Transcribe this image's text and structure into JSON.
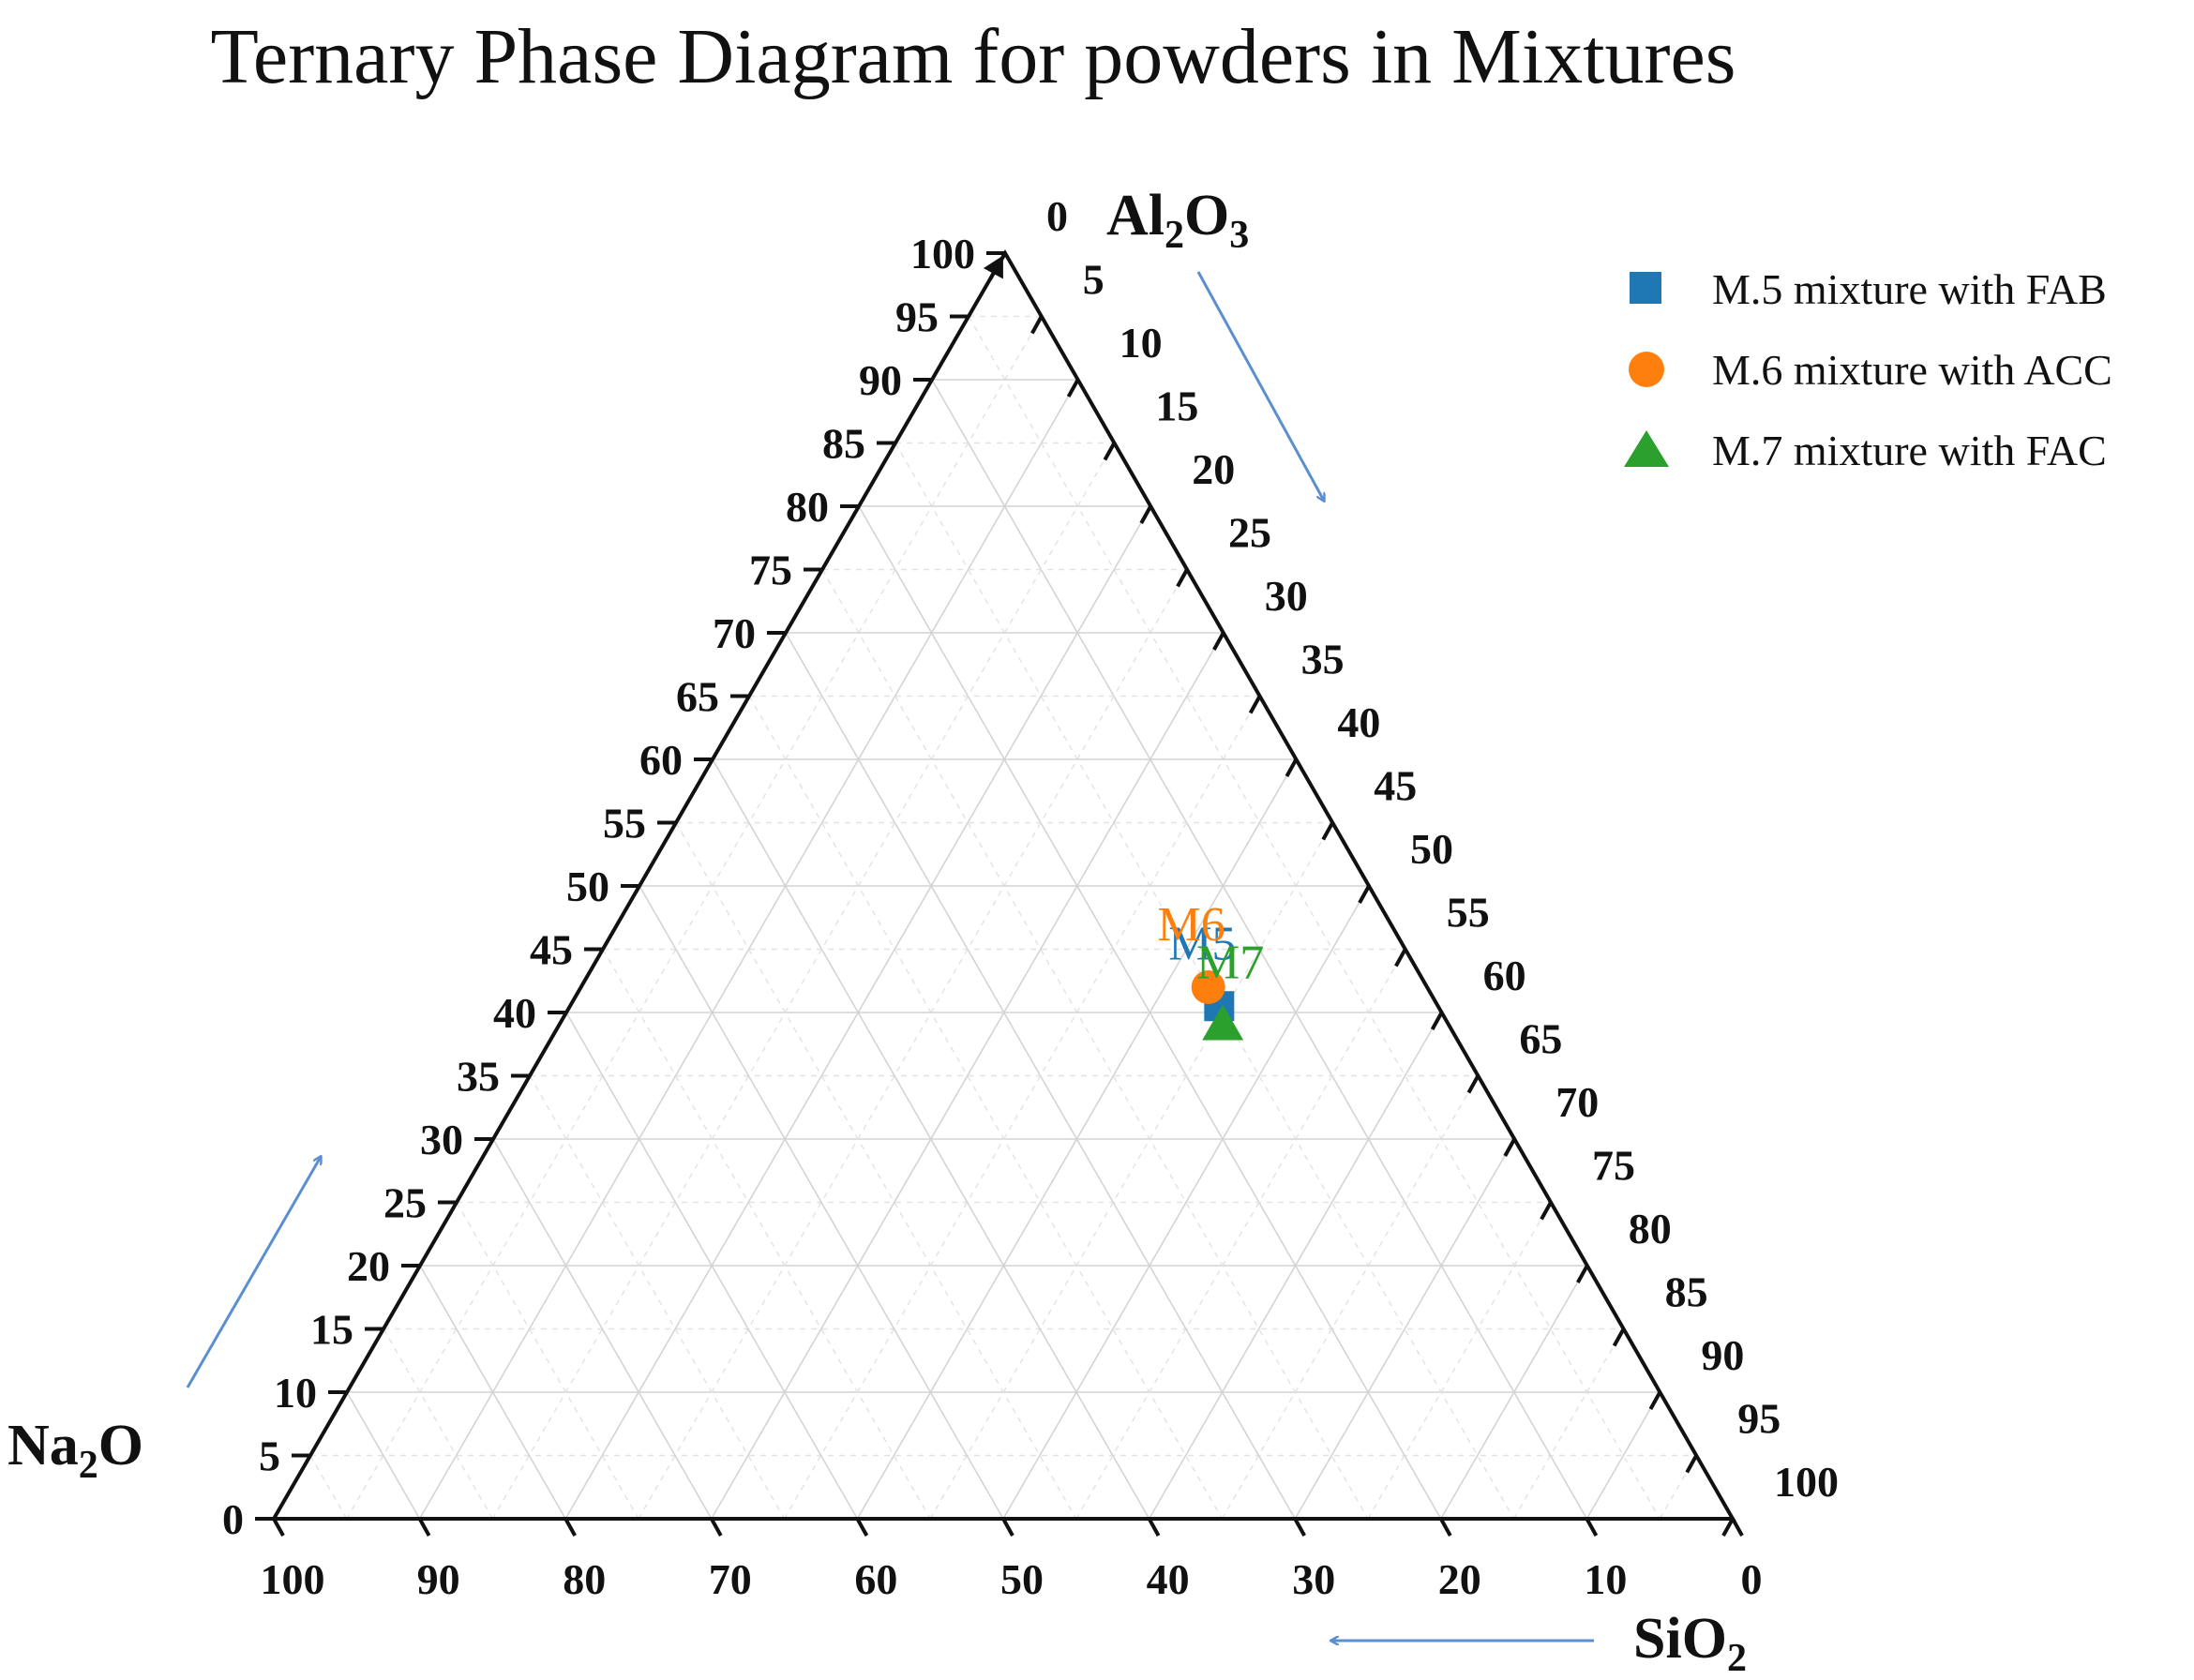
{
  "chart_data": {
    "type": "ternary-scatter",
    "title": "Ternary Phase Diagram for powders in Mixtures",
    "axes": {
      "top": {
        "label_main": "Al",
        "label_sub1": "2",
        "label_main2": "O",
        "label_sub2": "3"
      },
      "left": {
        "label_main": "Na",
        "label_sub1": "2",
        "label_main2": "O",
        "label_sub2": ""
      },
      "right": {
        "label_main": "SiO",
        "label_sub1": "2",
        "label_main2": "",
        "label_sub2": ""
      }
    },
    "ticks_left": [
      "0",
      "5",
      "10",
      "15",
      "20",
      "25",
      "30",
      "35",
      "40",
      "45",
      "50",
      "55",
      "60",
      "65",
      "70",
      "75",
      "80",
      "85",
      "90",
      "95",
      "100"
    ],
    "ticks_right": [
      "0",
      "5",
      "10",
      "15",
      "20",
      "25",
      "30",
      "35",
      "40",
      "45",
      "50",
      "55",
      "60",
      "65",
      "70",
      "75",
      "80",
      "85",
      "90",
      "95",
      "100"
    ],
    "ticks_bottom": [
      "100",
      "90",
      "80",
      "70",
      "60",
      "50",
      "40",
      "30",
      "20",
      "10",
      "0"
    ],
    "series": [
      {
        "name": "M.5 mixture with FAB",
        "marker": "square",
        "color": "#1f77b4",
        "point_label": "M5",
        "values": {
          "Na2O": 15,
          "Al2O3": 40.5,
          "SiO2": 44.5
        }
      },
      {
        "name": "M.6 mixture with ACC",
        "marker": "circle",
        "color": "#ff7f0e",
        "point_label": "M6",
        "values": {
          "Na2O": 15,
          "Al2O3": 42,
          "SiO2": 43
        }
      },
      {
        "name": "M.7 mixture with FAC",
        "marker": "triangle",
        "color": "#2ca02c",
        "point_label": "M7",
        "values": {
          "Na2O": 15.5,
          "Al2O3": 39,
          "SiO2": 45.5
        }
      }
    ],
    "grid": true,
    "legend_position": "top-right"
  }
}
